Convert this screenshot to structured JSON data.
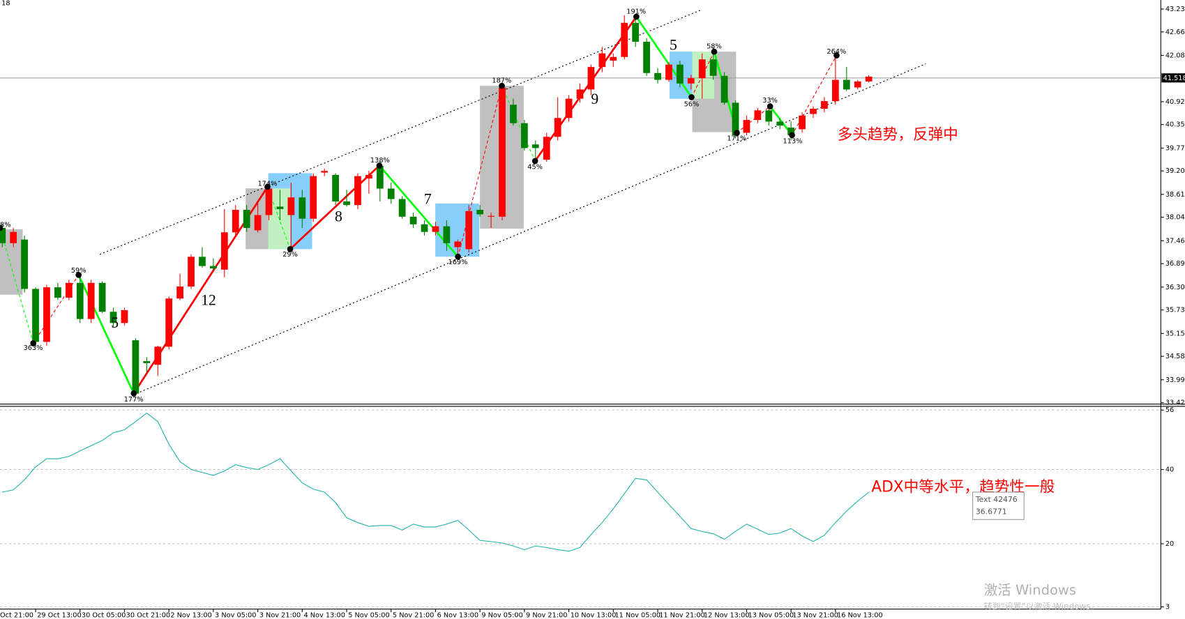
{
  "chart_data": [
    {
      "type": "candlestick",
      "corner_label": "18",
      "ylim": [
        33.39,
        43.46
      ],
      "yticks": [
        43.235,
        42.665,
        {
          "value": 42.08,
          "label": "42.080"
        },
        40.925,
        40.355,
        {
          "value": 39.77,
          "label": "39.770"
        },
        {
          "value": 39.2,
          "label": "39.200"
        },
        38.615,
        38.045,
        {
          "value": 37.46,
          "label": "37.460"
        },
        {
          "value": 36.89,
          "label": "36.890"
        },
        36.305,
        35.735,
        {
          "value": 35.15,
          "label": "35.150"
        },
        {
          "value": 34.58,
          "label": "34.580"
        },
        33.995,
        33.425
      ],
      "current_price": {
        "value": 41.518,
        "label": "41.518"
      },
      "up_color": "#ff0000",
      "down_color": "#008000",
      "open": [
        37.78,
        37.4,
        37.49,
        36.26,
        34.94,
        36.3,
        36.04,
        36.41,
        35.51,
        36.41,
        35.69,
        35.41,
        34.98,
        34.46,
        34.37,
        34.82,
        36.02,
        36.32,
        37.06,
        36.83,
        36.74,
        37.67,
        38.23,
        37.72,
        38.1,
        38.31,
        38.1,
        38.54,
        38.01,
        39.16,
        39.1,
        38.44,
        38.35,
        39.01,
        39.33,
        38.76,
        38.5,
        38.06,
        37.87,
        37.68,
        37.82,
        37.3,
        37.25,
        38.23,
        38.06,
        38.06,
        40.85,
        40.39,
        39.86,
        39.48,
        40.05,
        40.52,
        41.0,
        41.23,
        41.79,
        41.95,
        42.04,
        42.89,
        42.42,
        41.64,
        41.47,
        41.85,
        41.38,
        41.51,
        41.98,
        41.57,
        40.9,
        40.15,
        40.47,
        40.71,
        40.43,
        40.28,
        40.24,
        40.62,
        40.75,
        40.94,
        41.47,
        41.28,
        41.43
      ],
      "high": [
        37.87,
        37.78,
        37.59,
        36.3,
        36.36,
        36.41,
        36.49,
        36.64,
        36.49,
        36.45,
        35.79,
        35.79,
        35.03,
        34.56,
        34.84,
        36.07,
        36.64,
        37.12,
        37.3,
        37.02,
        38.25,
        38.35,
        38.35,
        38.44,
        38.91,
        38.73,
        38.91,
        38.73,
        39.14,
        39.26,
        39.14,
        38.73,
        39.14,
        39.2,
        39.45,
        38.91,
        38.57,
        38.16,
        37.97,
        37.93,
        37.97,
        37.49,
        38.35,
        38.35,
        38.16,
        41.38,
        41.0,
        40.47,
        39.96,
        40.15,
        41.04,
        41.09,
        41.38,
        41.85,
        42.29,
        42.13,
        43.08,
        43.04,
        42.51,
        41.76,
        41.91,
        41.95,
        41.6,
        42.13,
        42.29,
        41.66,
        40.96,
        40.58,
        40.77,
        40.85,
        40.52,
        40.43,
        40.66,
        40.81,
        41.04,
        42.04,
        41.79,
        41.47,
        41.59
      ],
      "low": [
        37.3,
        37.3,
        36.17,
        34.84,
        34.84,
        35.98,
        35.98,
        35.41,
        35.41,
        35.66,
        35.32,
        35.35,
        33.61,
        34.18,
        34.09,
        34.75,
        35.98,
        36.26,
        36.79,
        36.72,
        36.55,
        37.59,
        37.68,
        37.67,
        37.97,
        37.97,
        37.25,
        37.78,
        37.93,
        39.07,
        38.35,
        38.31,
        38.25,
        38.63,
        38.44,
        38.38,
        38.01,
        37.78,
        37.59,
        37.59,
        37.21,
        37.06,
        37.17,
        38.06,
        37.78,
        37.97,
        40.33,
        39.71,
        39.39,
        39.43,
        39.96,
        40.43,
        40.9,
        41.09,
        41.66,
        41.79,
        41.98,
        42.29,
        41.57,
        41.38,
        41.42,
        41.28,
        41.23,
        41.0,
        41.47,
        40.85,
        40.01,
        40.09,
        40.39,
        40.33,
        40.24,
        39.96,
        40.15,
        40.52,
        40.66,
        40.85,
        41.19,
        41.23,
        41.4
      ],
      "close": [
        37.4,
        37.68,
        36.26,
        34.94,
        36.3,
        36.04,
        36.41,
        35.51,
        36.41,
        35.69,
        35.41,
        35.73,
        33.65,
        34.41,
        34.82,
        36.02,
        36.32,
        37.06,
        36.83,
        36.77,
        37.67,
        38.23,
        37.78,
        38.1,
        38.76,
        38.25,
        38.54,
        38.01,
        39.07,
        39.2,
        38.44,
        38.35,
        39.07,
        39.1,
        38.76,
        38.5,
        38.06,
        37.87,
        37.68,
        37.82,
        37.4,
        37.44,
        38.2,
        38.12,
        38.08,
        41.28,
        40.39,
        39.77,
        39.77,
        40.05,
        40.52,
        41.0,
        41.23,
        41.79,
        42.13,
        42.04,
        42.89,
        42.42,
        41.64,
        41.47,
        41.85,
        41.38,
        41.51,
        41.98,
        41.57,
        40.9,
        40.09,
        40.47,
        40.71,
        40.43,
        40.33,
        40.09,
        40.58,
        40.75,
        40.94,
        41.47,
        41.23,
        41.43,
        41.55
      ],
      "annotations": [
        "12",
        "8",
        "7",
        "9",
        "5",
        "5",
        "363%",
        "59%",
        "177%",
        "174%",
        "29%",
        "138%",
        "169%",
        "187%",
        "45%",
        "191%",
        "58%",
        "56%",
        "171%",
        "33%",
        "113%",
        "264%",
        "8%"
      ],
      "note": "多头趋势，反弹中"
    },
    {
      "type": "line",
      "ylim": [
        2.4,
        57.0
      ],
      "yticks": [
        56,
        40,
        20,
        3
      ],
      "grid": true,
      "color": "#20b2aa",
      "clipped_label": "Oct 21:00",
      "categories": [
        null,
        null,
        null,
        "29 Oct 13:00",
        null,
        null,
        null,
        "30 Oct 05:00",
        null,
        null,
        null,
        "30 Oct 21:00",
        null,
        null,
        null,
        "2 Nov 13:00",
        null,
        null,
        null,
        "3 Nov 05:00",
        null,
        null,
        null,
        "3 Nov 21:00",
        null,
        null,
        null,
        "4 Nov 13:00",
        null,
        null,
        null,
        "5 Nov 05:00",
        null,
        null,
        null,
        "5 Nov 21:00",
        null,
        null,
        null,
        "6 Nov 13:00",
        null,
        null,
        null,
        "9 Nov 05:00",
        null,
        null,
        null,
        "9 Nov 21:00",
        null,
        null,
        null,
        "10 Nov 13:00",
        null,
        null,
        null,
        "11 Nov 05:00",
        null,
        null,
        null,
        "11 Nov 21:00",
        null,
        null,
        null,
        "12 Nov 13:00",
        null,
        null,
        null,
        "13 Nov 05:00",
        null,
        null,
        null,
        "13 Nov 21:00",
        null,
        null,
        null,
        "16 Nov 13:00",
        null,
        null,
        null
      ],
      "values": [
        33.9,
        34.5,
        37.2,
        40.7,
        42.9,
        42.9,
        43.5,
        45.0,
        46.4,
        47.8,
        49.9,
        50.7,
        52.9,
        55.2,
        52.9,
        46.8,
        42.1,
        40.0,
        39.2,
        38.4,
        39.6,
        41.3,
        40.5,
        40.0,
        41.3,
        42.9,
        39.6,
        36.4,
        34.7,
        33.9,
        31.1,
        27.0,
        25.7,
        24.7,
        24.9,
        24.9,
        23.7,
        25.3,
        24.5,
        24.5,
        25.3,
        26.3,
        23.7,
        20.9,
        20.6,
        20.2,
        19.4,
        18.4,
        19.4,
        19.0,
        18.4,
        18.0,
        19.0,
        22.5,
        25.7,
        29.4,
        33.5,
        37.6,
        37.2,
        33.9,
        30.6,
        27.4,
        24.1,
        23.3,
        22.7,
        21.2,
        23.3,
        25.3,
        23.9,
        22.5,
        22.9,
        24.1,
        22.1,
        20.6,
        22.3,
        25.7,
        28.8,
        31.5,
        33.9
      ],
      "note": "ADX中等水平，趋势性一般",
      "tooltip": [
        "Text 42476",
        "36.6771"
      ]
    }
  ],
  "watermark": [
    "激活 Windows",
    "转到“设置”以激活 Windows。"
  ]
}
